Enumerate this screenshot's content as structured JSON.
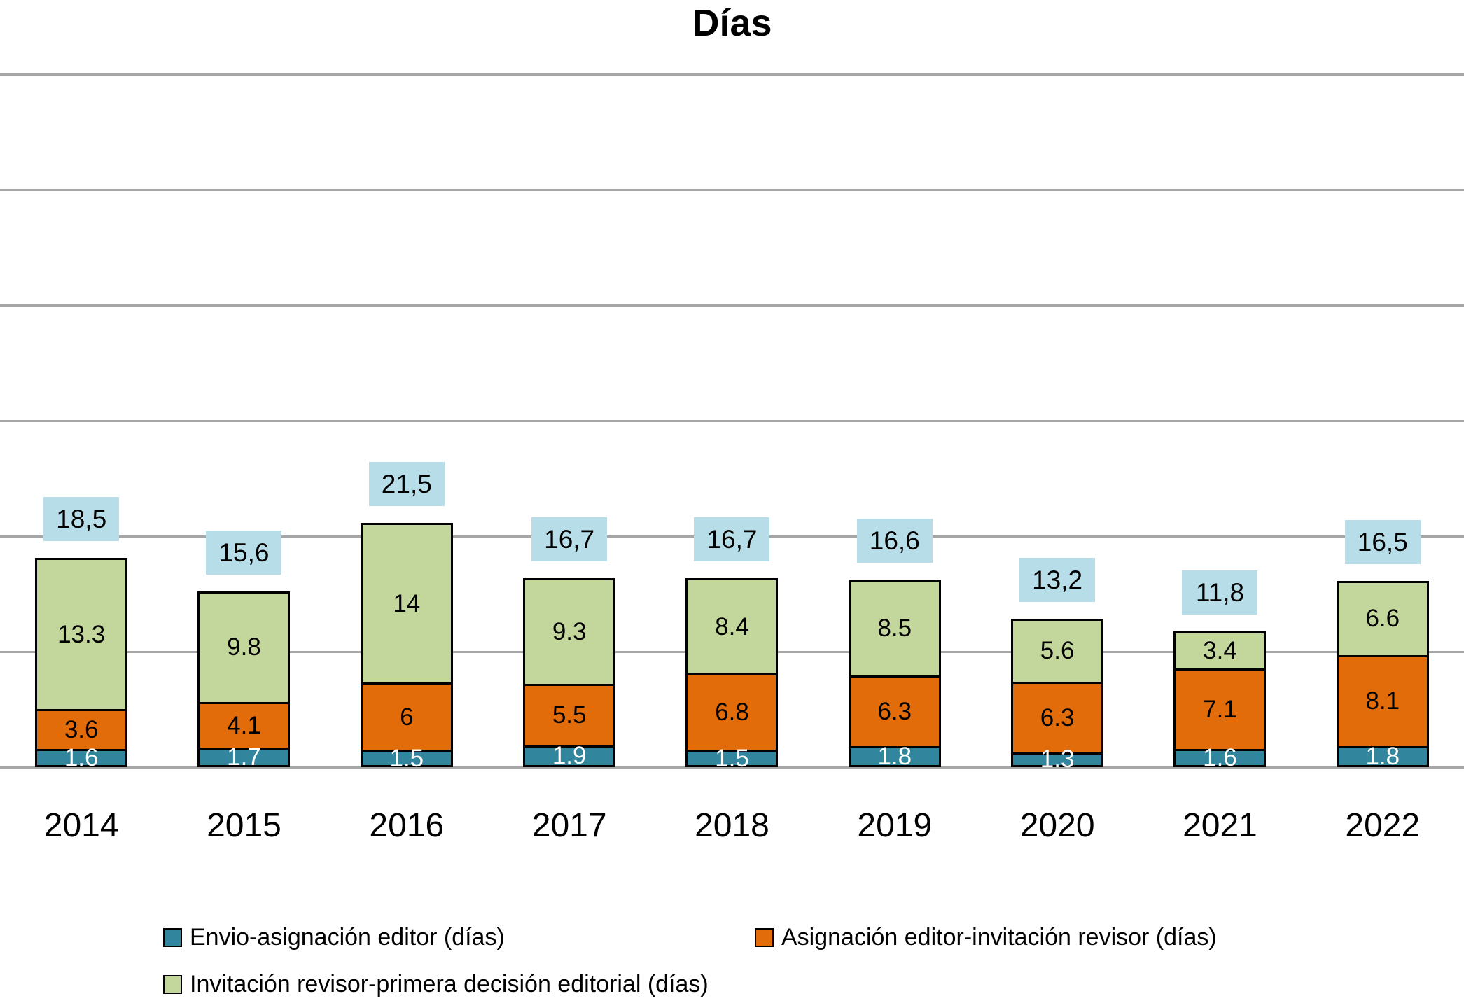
{
  "title": "Días",
  "chart_data": {
    "type": "bar",
    "stacked": true,
    "orientation": "vertical",
    "title": "Días",
    "categories": [
      "2014",
      "2015",
      "2016",
      "2017",
      "2018",
      "2019",
      "2020",
      "2021",
      "2022"
    ],
    "series": [
      {
        "name": "Envio-asignación editor (días)",
        "color": "#31859c",
        "label_color": "#ffffff",
        "values": [
          1.6,
          1.7,
          1.5,
          1.9,
          1.5,
          1.8,
          1.3,
          1.6,
          1.8
        ],
        "labels": [
          "1.6",
          "1.7",
          "1.5",
          "1.9",
          "1.5",
          "1.8",
          "1.3",
          "1.6",
          "1.8"
        ]
      },
      {
        "name": "Asignación editor-invitación revisor (días)",
        "color": "#e36c0a",
        "label_color": "#000000",
        "values": [
          3.6,
          4.1,
          6,
          5.5,
          6.8,
          6.3,
          6.3,
          7.1,
          8.1
        ],
        "labels": [
          "3.6",
          "4.1",
          "6",
          "5.5",
          "6.8",
          "6.3",
          "6.3",
          "7.1",
          "8.1"
        ]
      },
      {
        "name": "Invitación revisor-primera decisión editorial (días)",
        "color": "#c3d69b",
        "label_color": "#000000",
        "values": [
          13.3,
          9.8,
          14,
          9.3,
          8.4,
          8.5,
          5.6,
          3.4,
          6.6
        ],
        "labels": [
          "13.3",
          "9.8",
          "14",
          "9.3",
          "8.4",
          "8.5",
          "5.6",
          "3.4",
          "6.6"
        ]
      }
    ],
    "totals": [
      "18,5",
      "15,6",
      "21,5",
      "16,7",
      "16,7",
      "16,6",
      "13,2",
      "11,8",
      "16,5"
    ],
    "total_label_bg": "#b7dee8",
    "ylim": [
      0,
      60
    ],
    "gridline_step": 10,
    "gridline_color": "#a6a6a6",
    "grid": true,
    "legend_position": "bottom"
  },
  "legend": {
    "items": [
      {
        "label": "Envio-asignación editor (días)",
        "color": "#31859c"
      },
      {
        "label": "Asignación editor-invitación revisor (días)",
        "color": "#e36c0a"
      },
      {
        "label": "Invitación revisor-primera decisión editorial (días)",
        "color": "#c3d69b"
      }
    ]
  }
}
